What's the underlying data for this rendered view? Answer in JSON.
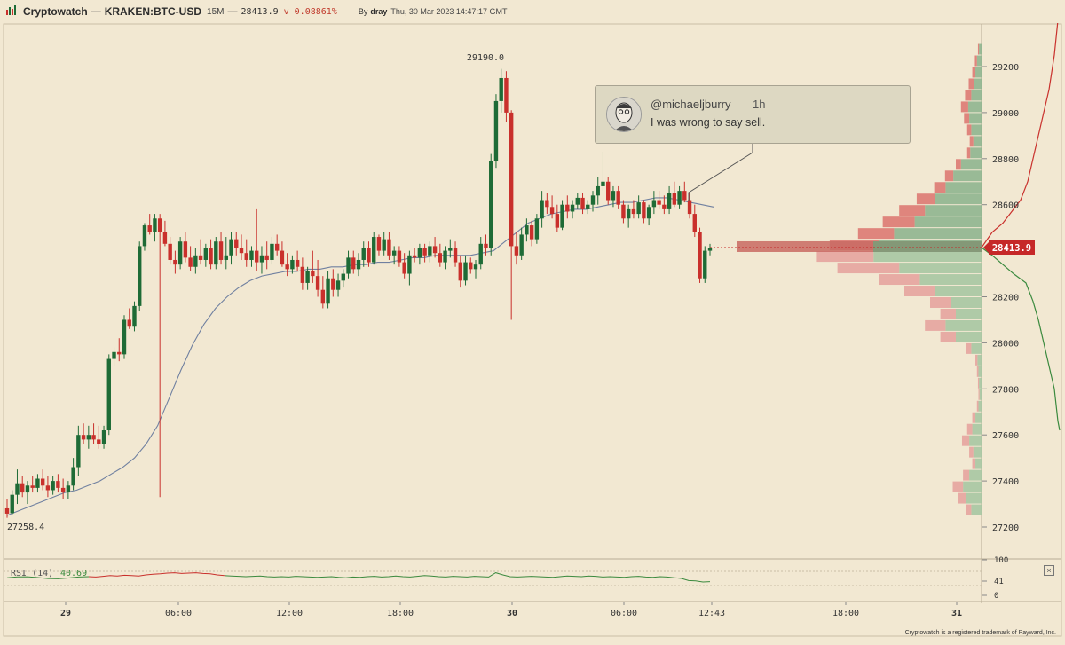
{
  "header": {
    "brand": "Cryptowatch",
    "separator": "—",
    "symbol": "KRAKEN:BTC-USD",
    "interval": "15M",
    "dash": "—",
    "price": "28413.9",
    "change": "v 0.08861%",
    "by_label": "By",
    "author": "dray",
    "timestamp": "Thu, 30 Mar 2023 14:47:17 GMT"
  },
  "tweet": {
    "handle": "@michaeljburry",
    "age": "1h",
    "text": "I was wrong to say sell."
  },
  "rsi": {
    "label": "RSI (14)",
    "value": "40.69",
    "axis_labels": [
      "100",
      "41",
      "0"
    ]
  },
  "footer": {
    "trademark": "Cryptowatch is a registered trademark of Payward, Inc."
  },
  "colors": {
    "background": "#f2e8d2",
    "up": "#1e6b36",
    "down": "#c9302c",
    "price_tag": "#c62828",
    "ma_line": "#7080a0",
    "rsi_line": "#3b8a3e"
  },
  "icons": {
    "logo": "cryptowatch-logo-icon",
    "close": "close-icon",
    "avatar": "avatar-icon"
  },
  "chart_data": {
    "type": "candlestick",
    "price_axis": {
      "ticks": [
        29200,
        29000,
        28800,
        28600,
        28400,
        28200,
        28000,
        27800,
        27600,
        27400,
        27200
      ],
      "tick_labels": [
        "29200",
        "29000",
        "28800",
        "28600",
        "28200",
        "28000",
        "27800",
        "27600",
        "27400",
        "27200"
      ],
      "range": [
        27150,
        29400
      ]
    },
    "time_axis": {
      "ticks": [
        {
          "label": "29",
          "bold": true
        },
        {
          "label": "06:00",
          "bold": false
        },
        {
          "label": "12:00",
          "bold": false
        },
        {
          "label": "18:00",
          "bold": false
        },
        {
          "label": "30",
          "bold": true
        },
        {
          "label": "06:00",
          "bold": false
        },
        {
          "label": "12:43",
          "bold": false
        },
        {
          "label": "18:00",
          "bold": false
        },
        {
          "label": "31",
          "bold": true
        }
      ]
    },
    "current_price": "28413.9",
    "annotations": {
      "high": "29190.0",
      "low": "27258.4"
    },
    "candles_ohlc": [
      [
        27281,
        27320,
        27240,
        27258
      ],
      [
        27260,
        27360,
        27250,
        27340
      ],
      [
        27340,
        27450,
        27300,
        27390
      ],
      [
        27390,
        27420,
        27330,
        27350
      ],
      [
        27350,
        27400,
        27300,
        27380
      ],
      [
        27380,
        27420,
        27350,
        27370
      ],
      [
        27370,
        27430,
        27350,
        27410
      ],
      [
        27410,
        27450,
        27360,
        27380
      ],
      [
        27380,
        27420,
        27330,
        27360
      ],
      [
        27360,
        27420,
        27340,
        27400
      ],
      [
        27400,
        27430,
        27350,
        27370
      ],
      [
        27370,
        27410,
        27320,
        27350
      ],
      [
        27350,
        27400,
        27320,
        27380
      ],
      [
        27380,
        27500,
        27360,
        27460
      ],
      [
        27460,
        27640,
        27420,
        27600
      ],
      [
        27600,
        27650,
        27560,
        27580
      ],
      [
        27580,
        27640,
        27540,
        27600
      ],
      [
        27600,
        27650,
        27560,
        27580
      ],
      [
        27580,
        27640,
        27540,
        27560
      ],
      [
        27560,
        27640,
        27540,
        27620
      ],
      [
        27620,
        27950,
        27600,
        27930
      ],
      [
        27930,
        27980,
        27900,
        27960
      ],
      [
        27960,
        28020,
        27920,
        27950
      ],
      [
        27950,
        28120,
        27930,
        28100
      ],
      [
        28100,
        28150,
        28060,
        28070
      ],
      [
        28070,
        28180,
        28050,
        28160
      ],
      [
        28160,
        28440,
        28140,
        28420
      ],
      [
        28420,
        28520,
        28400,
        28510
      ],
      [
        28510,
        28560,
        28470,
        28480
      ],
      [
        28480,
        28560,
        28440,
        28540
      ],
      [
        28540,
        28560,
        27330,
        28480
      ],
      [
        28480,
        28530,
        28420,
        28430
      ],
      [
        28430,
        28460,
        28340,
        28360
      ],
      [
        28360,
        28400,
        28300,
        28340
      ],
      [
        28340,
        28460,
        28320,
        28440
      ],
      [
        28440,
        28480,
        28350,
        28370
      ],
      [
        28370,
        28420,
        28310,
        28330
      ],
      [
        28330,
        28410,
        28300,
        28380
      ],
      [
        28380,
        28450,
        28340,
        28360
      ],
      [
        28360,
        28430,
        28330,
        28410
      ],
      [
        28410,
        28450,
        28320,
        28340
      ],
      [
        28340,
        28460,
        28320,
        28440
      ],
      [
        28440,
        28480,
        28340,
        28360
      ],
      [
        28360,
        28460,
        28320,
        28380
      ],
      [
        28380,
        28480,
        28340,
        28450
      ],
      [
        28450,
        28480,
        28380,
        28410
      ],
      [
        28410,
        28470,
        28360,
        28390
      ],
      [
        28390,
        28450,
        28330,
        28360
      ],
      [
        28360,
        28420,
        28330,
        28400
      ],
      [
        28400,
        28580,
        28310,
        28350
      ],
      [
        28350,
        28420,
        28300,
        28380
      ],
      [
        28380,
        28440,
        28320,
        28360
      ],
      [
        28360,
        28460,
        28340,
        28430
      ],
      [
        28430,
        28470,
        28380,
        28400
      ],
      [
        28400,
        28440,
        28330,
        28340
      ],
      [
        28340,
        28390,
        28290,
        28320
      ],
      [
        28320,
        28380,
        28300,
        28360
      ],
      [
        28360,
        28400,
        28310,
        28330
      ],
      [
        28330,
        28370,
        28230,
        28260
      ],
      [
        28260,
        28330,
        28230,
        28310
      ],
      [
        28310,
        28400,
        28260,
        28290
      ],
      [
        28290,
        28360,
        28200,
        28230
      ],
      [
        28230,
        28290,
        28150,
        28170
      ],
      [
        28170,
        28310,
        28150,
        28280
      ],
      [
        28280,
        28320,
        28200,
        28230
      ],
      [
        28230,
        28300,
        28200,
        28270
      ],
      [
        28270,
        28320,
        28240,
        28300
      ],
      [
        28300,
        28400,
        28280,
        28370
      ],
      [
        28370,
        28400,
        28300,
        28320
      ],
      [
        28320,
        28390,
        28290,
        28360
      ],
      [
        28360,
        28440,
        28330,
        28410
      ],
      [
        28410,
        28440,
        28330,
        28350
      ],
      [
        28350,
        28480,
        28340,
        28460
      ],
      [
        28460,
        28470,
        28380,
        28400
      ],
      [
        28400,
        28480,
        28380,
        28450
      ],
      [
        28450,
        28480,
        28360,
        28380
      ],
      [
        28380,
        28420,
        28340,
        28400
      ],
      [
        28400,
        28420,
        28330,
        28350
      ],
      [
        28350,
        28390,
        28280,
        28300
      ],
      [
        28300,
        28400,
        28250,
        28380
      ],
      [
        28380,
        28410,
        28350,
        28370
      ],
      [
        28370,
        28430,
        28340,
        28410
      ],
      [
        28410,
        28430,
        28350,
        28380
      ],
      [
        28380,
        28440,
        28350,
        28420
      ],
      [
        28420,
        28460,
        28370,
        28390
      ],
      [
        28390,
        28430,
        28330,
        28350
      ],
      [
        28350,
        28420,
        28320,
        28400
      ],
      [
        28400,
        28450,
        28370,
        28410
      ],
      [
        28410,
        28440,
        28330,
        28350
      ],
      [
        28350,
        28380,
        28240,
        28270
      ],
      [
        28270,
        28380,
        28250,
        28350
      ],
      [
        28350,
        28370,
        28300,
        28320
      ],
      [
        28320,
        28360,
        28280,
        28340
      ],
      [
        28340,
        28460,
        28320,
        28430
      ],
      [
        28430,
        28470,
        28380,
        28410
      ],
      [
        28410,
        28820,
        28380,
        28790
      ],
      [
        28790,
        29080,
        28760,
        29050
      ],
      [
        29050,
        29190,
        29000,
        29150
      ],
      [
        29150,
        29180,
        28960,
        29000
      ],
      [
        29000,
        29010,
        28100,
        28420
      ],
      [
        28420,
        28480,
        28340,
        28380
      ],
      [
        28380,
        28500,
        28360,
        28470
      ],
      [
        28470,
        28540,
        28440,
        28510
      ],
      [
        28510,
        28530,
        28420,
        28450
      ],
      [
        28450,
        28560,
        28430,
        28540
      ],
      [
        28540,
        28660,
        28500,
        28620
      ],
      [
        28620,
        28650,
        28560,
        28590
      ],
      [
        28590,
        28640,
        28540,
        28560
      ],
      [
        28560,
        28600,
        28480,
        28500
      ],
      [
        28500,
        28620,
        28490,
        28600
      ],
      [
        28600,
        28640,
        28540,
        28570
      ],
      [
        28570,
        28620,
        28540,
        28600
      ],
      [
        28600,
        28650,
        28580,
        28630
      ],
      [
        28630,
        28650,
        28560,
        28580
      ],
      [
        28580,
        28620,
        28560,
        28600
      ],
      [
        28600,
        28660,
        28570,
        28640
      ],
      [
        28640,
        28720,
        28600,
        28680
      ],
      [
        28680,
        28830,
        28660,
        28700
      ],
      [
        28700,
        28720,
        28600,
        28620
      ],
      [
        28620,
        28680,
        28590,
        28660
      ],
      [
        28660,
        28680,
        28580,
        28600
      ],
      [
        28600,
        28620,
        28520,
        28540
      ],
      [
        28540,
        28600,
        28500,
        28580
      ],
      [
        28580,
        28620,
        28540,
        28560
      ],
      [
        28560,
        28640,
        28540,
        28610
      ],
      [
        28610,
        28620,
        28520,
        28540
      ],
      [
        28540,
        28600,
        28510,
        28590
      ],
      [
        28590,
        28660,
        28560,
        28620
      ],
      [
        28620,
        28660,
        28580,
        28600
      ],
      [
        28600,
        28640,
        28560,
        28580
      ],
      [
        28580,
        28680,
        28560,
        28650
      ],
      [
        28650,
        28700,
        28590,
        28600
      ],
      [
        28600,
        28680,
        28580,
        28660
      ],
      [
        28660,
        28700,
        28610,
        28620
      ],
      [
        28620,
        28650,
        28540,
        28560
      ],
      [
        28560,
        28600,
        28460,
        28480
      ],
      [
        28480,
        28500,
        28260,
        28280
      ],
      [
        28280,
        28420,
        28260,
        28400
      ],
      [
        28400,
        28430,
        28380,
        28410
      ]
    ],
    "ma_trend": [
      27250,
      27270,
      27290,
      27310,
      27330,
      27350,
      27360,
      27380,
      27400,
      27430,
      27460,
      27500,
      27560,
      27640,
      27760,
      27880,
      27990,
      28080,
      28150,
      28200,
      28240,
      28270,
      28290,
      28300,
      28310,
      28310,
      28320,
      28320,
      28330,
      28330,
      28340,
      28340,
      28350,
      28350,
      28360,
      28370,
      28370,
      28380,
      28380,
      28380,
      28380,
      28390,
      28400,
      28440,
      28480,
      28520,
      28540,
      28560,
      28570,
      28580,
      28580,
      28590,
      28600,
      28610,
      28610,
      28620,
      28630,
      28630,
      28620,
      28610,
      28600,
      28590
    ],
    "volume_profile": [
      {
        "price": 29275,
        "bid": 2,
        "ask": 5
      },
      {
        "price": 29225,
        "bid": 4,
        "ask": 9
      },
      {
        "price": 29175,
        "bid": 6,
        "ask": 12
      },
      {
        "price": 29125,
        "bid": 10,
        "ask": 15
      },
      {
        "price": 29075,
        "bid": 12,
        "ask": 20
      },
      {
        "price": 29025,
        "bid": 14,
        "ask": 26
      },
      {
        "price": 28975,
        "bid": 10,
        "ask": 24
      },
      {
        "price": 28925,
        "bid": 8,
        "ask": 20
      },
      {
        "price": 28875,
        "bid": 7,
        "ask": 16
      },
      {
        "price": 28825,
        "bid": 6,
        "ask": 22
      },
      {
        "price": 28775,
        "bid": 10,
        "ask": 40
      },
      {
        "price": 28725,
        "bid": 16,
        "ask": 55
      },
      {
        "price": 28675,
        "bid": 22,
        "ask": 70
      },
      {
        "price": 28625,
        "bid": 36,
        "ask": 90
      },
      {
        "price": 28575,
        "bid": 50,
        "ask": 110
      },
      {
        "price": 28525,
        "bid": 62,
        "ask": 130
      },
      {
        "price": 28475,
        "bid": 70,
        "ask": 170
      },
      {
        "price": 28425,
        "bid": 95,
        "ask": 200
      },
      {
        "price": 28375,
        "bid": 110,
        "ask": 210
      },
      {
        "price": 28325,
        "bid": 120,
        "ask": 160
      },
      {
        "price": 28275,
        "bid": 80,
        "ask": 120
      },
      {
        "price": 28225,
        "bid": 60,
        "ask": 90
      },
      {
        "price": 28175,
        "bid": 40,
        "ask": 60
      },
      {
        "price": 28125,
        "bid": 30,
        "ask": 50
      },
      {
        "price": 28075,
        "bid": 40,
        "ask": 70
      },
      {
        "price": 28025,
        "bid": 30,
        "ask": 50
      },
      {
        "price": 27975,
        "bid": 10,
        "ask": 20
      },
      {
        "price": 27925,
        "bid": 4,
        "ask": 8
      },
      {
        "price": 27875,
        "bid": 3,
        "ask": 6
      },
      {
        "price": 27825,
        "bid": 2,
        "ask": 5
      },
      {
        "price": 27775,
        "bid": 2,
        "ask": 4
      },
      {
        "price": 27725,
        "bid": 3,
        "ask": 6
      },
      {
        "price": 27675,
        "bid": 6,
        "ask": 12
      },
      {
        "price": 27625,
        "bid": 10,
        "ask": 18
      },
      {
        "price": 27575,
        "bid": 14,
        "ask": 24
      },
      {
        "price": 27525,
        "bid": 8,
        "ask": 16
      },
      {
        "price": 27475,
        "bid": 6,
        "ask": 12
      },
      {
        "price": 27425,
        "bid": 12,
        "ask": 24
      },
      {
        "price": 27375,
        "bid": 20,
        "ask": 36
      },
      {
        "price": 27325,
        "bid": 16,
        "ask": 30
      },
      {
        "price": 27275,
        "bid": 10,
        "ask": 20
      }
    ],
    "cumulative_depth_note": "red ask curve above current price, green bid curve below"
  }
}
